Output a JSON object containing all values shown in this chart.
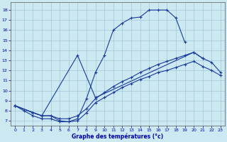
{
  "bg_color": "#cce8f0",
  "line_color": "#1a3a9c",
  "grid_color": "#a0c8d8",
  "xlabel": "Graphe des températures (°c)",
  "ylim": [
    6.5,
    18.8
  ],
  "xlim": [
    -0.5,
    23.5
  ],
  "yticks": [
    7,
    8,
    9,
    10,
    11,
    12,
    13,
    14,
    15,
    16,
    17,
    18
  ],
  "xticks": [
    0,
    1,
    2,
    3,
    4,
    5,
    6,
    7,
    8,
    9,
    10,
    11,
    12,
    13,
    14,
    15,
    16,
    17,
    18,
    19,
    20,
    21,
    22,
    23
  ],
  "c1_x": [
    0,
    1,
    2,
    3,
    4,
    5,
    6,
    7,
    8,
    9,
    10,
    11,
    12,
    13,
    14,
    15,
    16,
    17,
    18,
    19
  ],
  "c1_y": [
    8.5,
    8.0,
    7.5,
    7.2,
    7.2,
    6.9,
    6.9,
    7.2,
    9.2,
    11.8,
    13.5,
    16.0,
    16.7,
    17.2,
    17.3,
    18.0,
    18.0,
    18.0,
    17.2,
    14.8
  ],
  "c2_x": [
    0,
    3,
    7,
    9,
    20,
    21
  ],
  "c2_y": [
    8.5,
    7.5,
    13.5,
    9.3,
    13.8,
    13.2
  ],
  "c3_x": [
    0,
    2,
    3,
    4,
    5,
    6,
    7,
    8,
    9,
    10,
    11,
    12,
    13,
    14,
    15,
    16,
    17,
    18,
    19,
    20,
    21,
    22,
    23
  ],
  "c3_y": [
    8.5,
    7.8,
    7.5,
    7.5,
    7.2,
    7.2,
    7.5,
    8.2,
    9.2,
    9.8,
    10.4,
    10.9,
    11.3,
    11.8,
    12.2,
    12.6,
    12.9,
    13.2,
    13.5,
    13.8,
    13.2,
    12.8,
    11.8
  ],
  "c4_x": [
    0,
    2,
    3,
    4,
    5,
    6,
    7,
    8,
    9,
    10,
    11,
    12,
    13,
    14,
    15,
    16,
    17,
    18,
    19,
    20,
    21,
    22,
    23
  ],
  "c4_y": [
    8.5,
    7.8,
    7.5,
    7.5,
    7.0,
    6.9,
    7.0,
    7.8,
    8.8,
    9.3,
    9.8,
    10.3,
    10.7,
    11.1,
    11.4,
    11.8,
    12.0,
    12.3,
    12.6,
    12.9,
    12.4,
    12.0,
    11.5
  ]
}
